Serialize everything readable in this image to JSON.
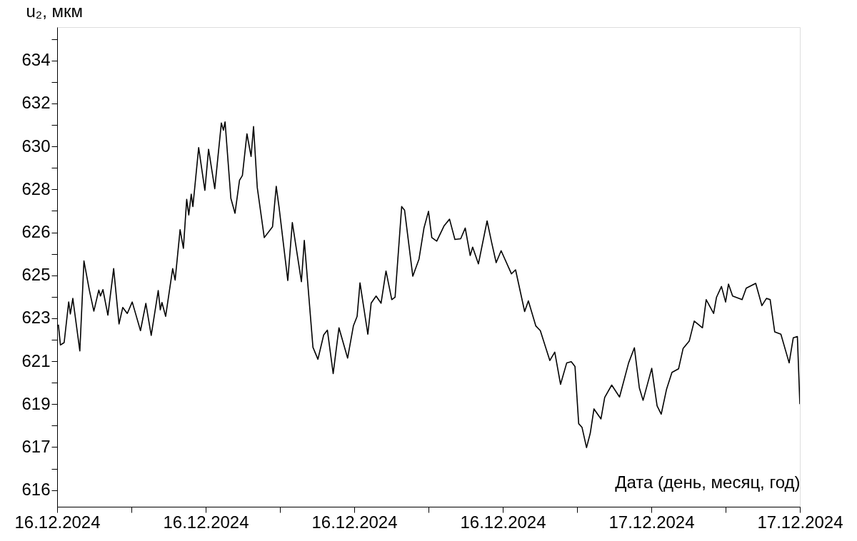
{
  "chart_data": {
    "type": "line",
    "ylabel": "u₂, мкм",
    "xlabel": "Дата (день, месяц, год)",
    "x": [
      "2024-12-16T00:03",
      "2024-12-16T00:08",
      "2024-12-16T00:17",
      "2024-12-16T00:28",
      "2024-12-16T00:32",
      "2024-12-16T00:38",
      "2024-12-16T00:55",
      "2024-12-16T01:05",
      "2024-12-16T01:18",
      "2024-12-16T01:29",
      "2024-12-16T01:41",
      "2024-12-16T01:45",
      "2024-12-16T01:51",
      "2024-12-16T02:03",
      "2024-12-16T02:17",
      "2024-12-16T02:30",
      "2024-12-16T02:39",
      "2024-12-16T02:50",
      "2024-12-16T03:02",
      "2024-12-16T03:22",
      "2024-12-16T03:35",
      "2024-12-16T03:48",
      "2024-12-16T04:05",
      "2024-12-16T04:10",
      "2024-12-16T04:14",
      "2024-12-16T04:23",
      "2024-12-16T04:40",
      "2024-12-16T04:46",
      "2024-12-16T04:58",
      "2024-12-16T05:06",
      "2024-12-16T05:14",
      "2024-12-16T05:19",
      "2024-12-16T05:25",
      "2024-12-16T05:29",
      "2024-12-16T05:43",
      "2024-12-16T05:58",
      "2024-12-16T06:07",
      "2024-12-16T06:22",
      "2024-12-16T06:38",
      "2024-12-16T06:43",
      "2024-12-16T06:47",
      "2024-12-16T07:01",
      "2024-12-16T07:11",
      "2024-12-16T07:22",
      "2024-12-16T07:29",
      "2024-12-16T07:40",
      "2024-12-16T07:50",
      "2024-12-16T07:56",
      "2024-12-16T08:05",
      "2024-12-16T08:22",
      "2024-12-16T08:42",
      "2024-12-16T08:51",
      "2024-12-16T08:58",
      "2024-12-16T09:19",
      "2024-12-16T09:30",
      "2024-12-16T09:52",
      "2024-12-16T09:59",
      "2024-12-16T10:20",
      "2024-12-16T10:32",
      "2024-12-16T10:46",
      "2024-12-16T10:55",
      "2024-12-16T11:09",
      "2024-12-16T11:23",
      "2024-12-16T11:44",
      "2024-12-16T11:58",
      "2024-12-16T12:07",
      "2024-12-16T12:14",
      "2024-12-16T12:33",
      "2024-12-16T12:41",
      "2024-12-16T12:53",
      "2024-12-16T13:05",
      "2024-12-16T13:17",
      "2024-12-16T13:31",
      "2024-12-16T13:39",
      "2024-12-16T13:55",
      "2024-12-16T14:02",
      "2024-12-16T14:22",
      "2024-12-16T14:37",
      "2024-12-16T14:49",
      "2024-12-16T15:00",
      "2024-12-16T15:08",
      "2024-12-16T15:20",
      "2024-12-16T15:38",
      "2024-12-16T15:51",
      "2024-12-16T16:04",
      "2024-12-16T16:18",
      "2024-12-16T16:29",
      "2024-12-16T16:41",
      "2024-12-16T16:47",
      "2024-12-16T17:01",
      "2024-12-16T17:22",
      "2024-12-16T17:33",
      "2024-12-16T17:44",
      "2024-12-16T17:56",
      "2024-12-16T18:21",
      "2024-12-16T18:31",
      "2024-12-16T18:53",
      "2024-12-16T19:02",
      "2024-12-16T19:20",
      "2024-12-16T19:31",
      "2024-12-16T19:54",
      "2024-12-16T20:06",
      "2024-12-16T20:20",
      "2024-12-16T20:35",
      "2024-12-16T20:46",
      "2024-12-16T20:55",
      "2024-12-16T21:04",
      "2024-12-16T21:12",
      "2024-12-16T21:23",
      "2024-12-16T21:32",
      "2024-12-16T21:41",
      "2024-12-16T21:58",
      "2024-12-16T22:07",
      "2024-12-16T22:24",
      "2024-12-16T22:43",
      "2024-12-16T23:05",
      "2024-12-16T23:19",
      "2024-12-16T23:31",
      "2024-12-16T23:40",
      "2024-12-17T00:01",
      "2024-12-17T00:14",
      "2024-12-17T00:24",
      "2024-12-17T00:37",
      "2024-12-17T00:50",
      "2024-12-17T01:06",
      "2024-12-17T01:17",
      "2024-12-17T01:32",
      "2024-12-17T01:44",
      "2024-12-17T02:04",
      "2024-12-17T02:13",
      "2024-12-17T02:31",
      "2024-12-17T02:38",
      "2024-12-17T02:50",
      "2024-12-17T03:00",
      "2024-12-17T03:07",
      "2024-12-17T03:17",
      "2024-12-17T03:40",
      "2024-12-17T03:50",
      "2024-12-17T04:13",
      "2024-12-17T04:28",
      "2024-12-17T04:39",
      "2024-12-17T04:48",
      "2024-12-17T04:59",
      "2024-12-17T05:14",
      "2024-12-17T05:34",
      "2024-12-17T05:44",
      "2024-12-17T05:54",
      "2024-12-17T06:00"
    ],
    "series": [
      {
        "color": "#000000",
        "values": [
          622.43,
          621.58,
          621.68,
          623.38,
          622.88,
          623.53,
          621.33,
          625.1,
          623.88,
          623.0,
          623.88,
          623.63,
          623.9,
          622.83,
          624.78,
          622.46,
          623.15,
          622.9,
          623.38,
          622.18,
          623.32,
          621.98,
          623.86,
          623.05,
          623.36,
          622.78,
          624.78,
          624.3,
          626.41,
          625.63,
          627.68,
          627.03,
          627.9,
          627.38,
          629.85,
          628.06,
          629.78,
          628.13,
          630.88,
          630.58,
          630.93,
          627.73,
          627.1,
          628.48,
          628.68,
          630.43,
          629.48,
          630.73,
          628.18,
          626.08,
          626.53,
          628.23,
          627.33,
          624.28,
          626.71,
          624.23,
          625.96,
          621.48,
          620.98,
          622.0,
          622.2,
          620.38,
          622.3,
          621.03,
          622.38,
          622.78,
          624.18,
          622.03,
          623.33,
          623.63,
          623.33,
          624.68,
          623.48,
          623.58,
          627.38,
          627.23,
          624.46,
          625.18,
          626.48,
          627.18,
          626.08,
          625.93,
          626.58,
          626.85,
          626.0,
          626.03,
          626.48,
          625.33,
          625.68,
          624.98,
          626.78,
          625.88,
          625.03,
          625.53,
          624.56,
          624.73,
          622.98,
          623.43,
          622.38,
          622.18,
          620.93,
          621.28,
          619.93,
          620.83,
          620.88,
          620.68,
          618.28,
          618.13,
          617.28,
          617.88,
          618.9,
          618.48,
          619.38,
          619.9,
          619.4,
          620.83,
          621.46,
          619.78,
          619.26,
          620.6,
          619.03,
          618.68,
          619.73,
          620.43,
          620.58,
          621.43,
          621.75,
          622.58,
          622.3,
          623.48,
          622.9,
          623.58,
          624.03,
          623.38,
          624.13,
          623.63,
          623.48,
          623.96,
          624.16,
          623.23,
          623.53,
          623.48,
          622.13,
          622.03,
          620.83,
          621.88,
          621.93,
          619.1
        ]
      }
    ],
    "xlim": [
      "2024-12-16T00:00",
      "2024-12-17T06:00"
    ],
    "xticks": [
      {
        "value": "2024-12-16T00:00",
        "label": "16.12.2024"
      },
      {
        "value": "2024-12-16T03:00",
        "label": null
      },
      {
        "value": "2024-12-16T06:00",
        "label": "16.12.2024"
      },
      {
        "value": "2024-12-16T09:00",
        "label": null
      },
      {
        "value": "2024-12-16T12:00",
        "label": "16.12.2024"
      },
      {
        "value": "2024-12-16T15:00",
        "label": null
      },
      {
        "value": "2024-12-16T18:00",
        "label": "16.12.2024"
      },
      {
        "value": "2024-12-16T21:00",
        "label": null
      },
      {
        "value": "2024-12-17T00:00",
        "label": "17.12.2024"
      },
      {
        "value": "2024-12-17T03:00",
        "label": null
      },
      {
        "value": "2024-12-17T06:00",
        "label": "17.12.2024"
      }
    ],
    "ylim": [
      614.8,
      634.9
    ],
    "yticks": [
      {
        "value": 615.5,
        "label": "616"
      },
      {
        "value": 616.4,
        "label": null
      },
      {
        "value": 617.3,
        "label": "617"
      },
      {
        "value": 618.2,
        "label": null
      },
      {
        "value": 619.1,
        "label": "619"
      },
      {
        "value": 620.0,
        "label": null
      },
      {
        "value": 620.9,
        "label": "621"
      },
      {
        "value": 621.8,
        "label": null
      },
      {
        "value": 622.7,
        "label": "623"
      },
      {
        "value": 623.6,
        "label": null
      },
      {
        "value": 624.5,
        "label": "625"
      },
      {
        "value": 625.4,
        "label": null
      },
      {
        "value": 626.3,
        "label": "626"
      },
      {
        "value": 627.2,
        "label": null
      },
      {
        "value": 628.1,
        "label": "628"
      },
      {
        "value": 629.0,
        "label": null
      },
      {
        "value": 629.9,
        "label": "630"
      },
      {
        "value": 630.8,
        "label": null
      },
      {
        "value": 631.7,
        "label": "632"
      },
      {
        "value": 632.6,
        "label": null
      },
      {
        "value": 633.5,
        "label": "634"
      },
      {
        "value": 634.4,
        "label": null
      }
    ],
    "grid": false,
    "marker": "none",
    "line_style": "solid"
  }
}
